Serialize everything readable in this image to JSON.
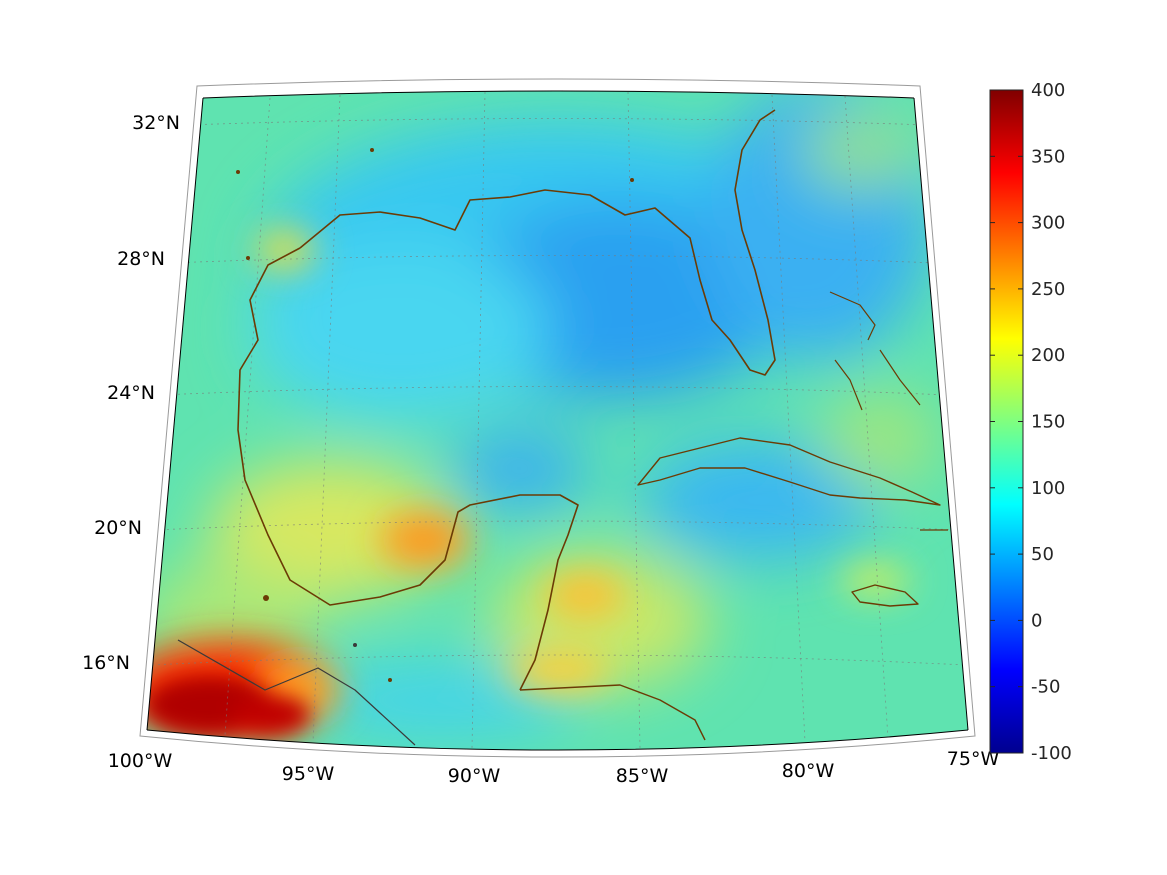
{
  "map": {
    "projection": "lambert-conic",
    "lon_range": [
      -100,
      -75
    ],
    "lat_range": [
      14,
      33
    ],
    "lon_labels": [
      "100°W",
      "95°W",
      "90°W",
      "85°W",
      "80°W",
      "75°W"
    ],
    "lat_labels": [
      "16°N",
      "20°N",
      "24°N",
      "28°N",
      "32°N"
    ],
    "coastline_color": "#6b3b05",
    "grid": true
  },
  "colorbar": {
    "colormap": "jet",
    "range": [
      -100,
      400
    ],
    "tick_values": [
      400,
      350,
      300,
      250,
      200,
      150,
      100,
      50,
      0,
      -50,
      -100
    ],
    "tick_labels": [
      "400",
      "350",
      "300",
      "250",
      "200",
      "150",
      "100",
      "50",
      "0",
      "-50",
      "-100"
    ]
  },
  "field_features": [
    {
      "name": "southern-mexico-max",
      "value": 390
    },
    {
      "name": "yucatan-west-high",
      "value": 280
    },
    {
      "name": "eastern-gulf-low",
      "value": 40
    },
    {
      "name": "western-atlantic-low",
      "value": 45
    },
    {
      "name": "gulf-background",
      "value": 110
    }
  ]
}
